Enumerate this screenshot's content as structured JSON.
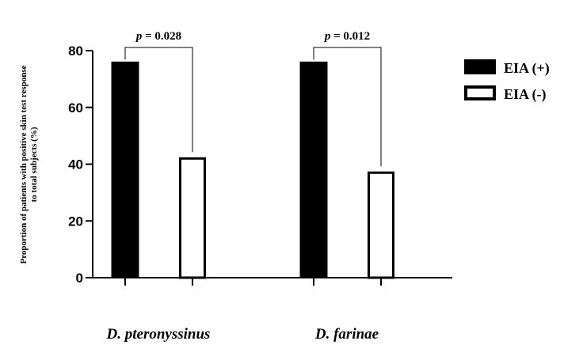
{
  "chart_data": {
    "type": "bar",
    "categories": [
      "D. pteronyssinus",
      "D. farinae"
    ],
    "series": [
      {
        "name": "EIA (+)",
        "values": [
          76,
          76
        ],
        "color": "#000000"
      },
      {
        "name": "EIA (-)",
        "values": [
          42,
          37
        ],
        "color": "#ffffff"
      }
    ],
    "ylabel_line1": "Proportion of patients with positive skin test response",
    "ylabel_line2": "to total subjects (%)",
    "ylim": [
      0,
      80
    ],
    "yticks": [
      0,
      20,
      40,
      60,
      80
    ],
    "legend_position": "top-right",
    "annotations": [
      {
        "category": 0,
        "p_symbol": "p",
        "p_rest": " = 0.028"
      },
      {
        "category": 1,
        "p_symbol": "p",
        "p_rest": " = 0.012"
      }
    ]
  }
}
